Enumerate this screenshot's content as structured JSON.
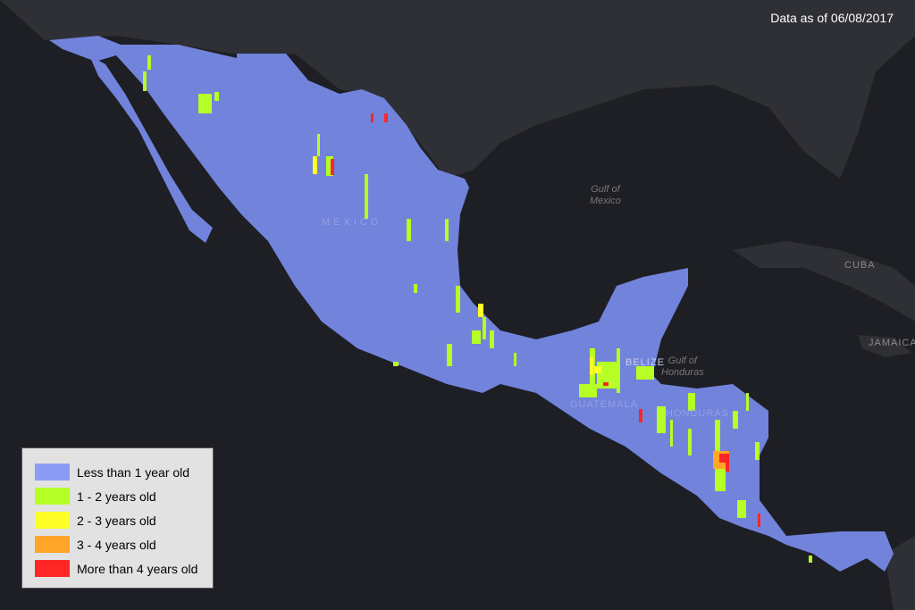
{
  "stamp": "Data as of 06/08/2017",
  "labels": {
    "gulf_mexico": "Gulf of\nMexico",
    "gulf_honduras": "Gulf of\nHonduras",
    "cuba": "CUBA",
    "jamaica": "JAMAICA",
    "mexico": "MEXICO",
    "belize": "BELIZE",
    "guatemala": "GUATEMALA",
    "honduras": "HONDURAS"
  },
  "colors": {
    "ocean": "#1e1f24",
    "land": "#2f3035",
    "coverage": "#7283dc"
  },
  "legend": [
    {
      "label": "Less than 1 year old",
      "color": "#8c9cf4"
    },
    {
      "label": "1 - 2 years old",
      "color": "#b5ff27"
    },
    {
      "label": "2 - 3 years old",
      "color": "#ffff28"
    },
    {
      "label": "3 - 4 years old",
      "color": "#ffa528"
    },
    {
      "label": "More than 4 years old",
      "color": "#ff2626"
    }
  ]
}
